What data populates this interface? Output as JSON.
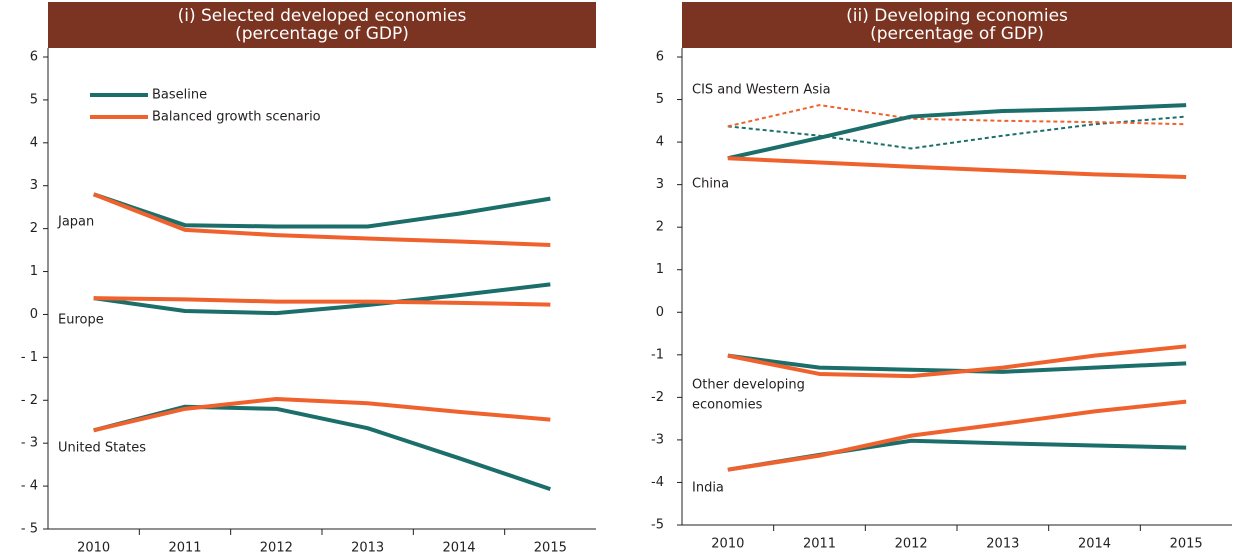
{
  "chart_data": [
    {
      "type": "line",
      "title": "(i) Selected developed economies",
      "subtitle": "(percentage of GDP)",
      "categories": [
        "2010",
        "2011",
        "2012",
        "2013",
        "2014",
        "2015"
      ],
      "ylim": [
        -5,
        6
      ],
      "yticks": [
        {
          "value": -5,
          "label": "- 5"
        },
        {
          "value": -4,
          "label": "- 4"
        },
        {
          "value": -3,
          "label": "- 3"
        },
        {
          "value": -2,
          "label": "- 2"
        },
        {
          "value": -1,
          "label": "- 1"
        },
        0,
        1,
        2,
        3,
        4,
        5,
        6
      ],
      "colors": {
        "baseline": "#1b6e69",
        "balanced": "#f0622d"
      },
      "legend": {
        "baseline": "Baseline",
        "balanced": "Balanced growth scenario"
      },
      "series": [
        {
          "label": [
            "Japan"
          ],
          "baseline": [
            2.8,
            2.08,
            2.05,
            2.05,
            2.35,
            2.7
          ],
          "balanced": [
            2.8,
            1.97,
            1.85,
            1.77,
            1.7,
            1.62
          ]
        },
        {
          "label": [
            "Europe"
          ],
          "baseline": [
            0.38,
            0.08,
            0.03,
            0.22,
            0.45,
            0.7
          ],
          "balanced": [
            0.38,
            0.35,
            0.3,
            0.3,
            0.27,
            0.23
          ]
        },
        {
          "label": [
            "United States"
          ],
          "baseline": [
            -2.7,
            -2.15,
            -2.2,
            -2.65,
            -3.35,
            -4.07
          ],
          "balanced": [
            -2.7,
            -2.2,
            -1.97,
            -2.07,
            -2.27,
            -2.45
          ]
        }
      ]
    },
    {
      "type": "line",
      "title": "(ii) Developing economies",
      "subtitle": "(percentage of GDP)",
      "categories": [
        "2010",
        "2011",
        "2012",
        "2013",
        "2014",
        "2015"
      ],
      "ylim": [
        -5,
        6
      ],
      "yticks": [
        -5,
        -4,
        -3,
        -2,
        -1,
        0,
        1,
        2,
        3,
        4,
        5,
        6
      ],
      "colors": {
        "baseline": "#1b6e69",
        "balanced": "#f0622d"
      },
      "series": [
        {
          "label": [
            "CIS and Western Asia"
          ],
          "dashed": true,
          "baseline": [
            4.37,
            4.15,
            3.85,
            4.15,
            4.42,
            4.6
          ],
          "balanced": [
            4.37,
            4.87,
            4.55,
            4.5,
            4.47,
            4.42
          ]
        },
        {
          "label": [
            "China"
          ],
          "baseline": [
            3.62,
            4.1,
            4.6,
            4.73,
            4.78,
            4.87
          ],
          "balanced": [
            3.62,
            3.52,
            3.42,
            3.33,
            3.24,
            3.18
          ]
        },
        {
          "label": [
            "Other developing",
            "economies"
          ],
          "baseline": [
            -1.02,
            -1.3,
            -1.35,
            -1.4,
            -1.3,
            -1.2
          ],
          "balanced": [
            -1.02,
            -1.45,
            -1.5,
            -1.3,
            -1.02,
            -0.8
          ]
        },
        {
          "label": [
            "India"
          ],
          "baseline": [
            -3.7,
            -3.35,
            -3.02,
            -3.08,
            -3.13,
            -3.18
          ],
          "balanced": [
            -3.7,
            -3.37,
            -2.9,
            -2.62,
            -2.33,
            -2.1
          ]
        }
      ]
    }
  ]
}
